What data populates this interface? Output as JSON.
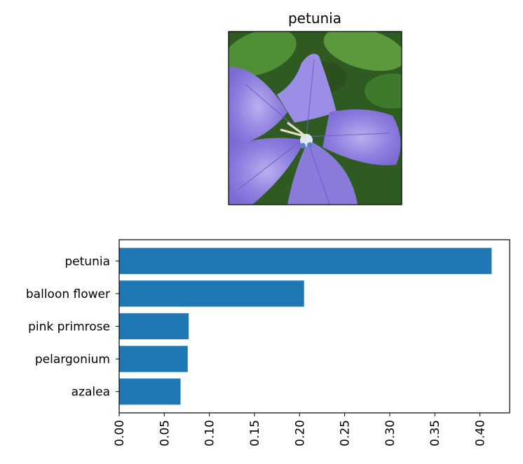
{
  "image_panel": {
    "title": "petunia",
    "image_icon": "purple-five-petal-flower-photo"
  },
  "chart_data": {
    "type": "bar",
    "orientation": "horizontal",
    "categories": [
      "petunia",
      "balloon flower",
      "pink primrose",
      "pelargonium",
      "azalea"
    ],
    "values": [
      0.413,
      0.205,
      0.077,
      0.076,
      0.068
    ],
    "xlim": [
      0,
      0.433
    ],
    "xticks": [
      "0.00",
      "0.05",
      "0.10",
      "0.15",
      "0.20",
      "0.25",
      "0.30",
      "0.35",
      "0.40"
    ],
    "xtick_rotation": "vertical",
    "title": "",
    "xlabel": "",
    "ylabel": "",
    "bar_color": "#1f77b4",
    "grid": false,
    "legend": "none"
  }
}
